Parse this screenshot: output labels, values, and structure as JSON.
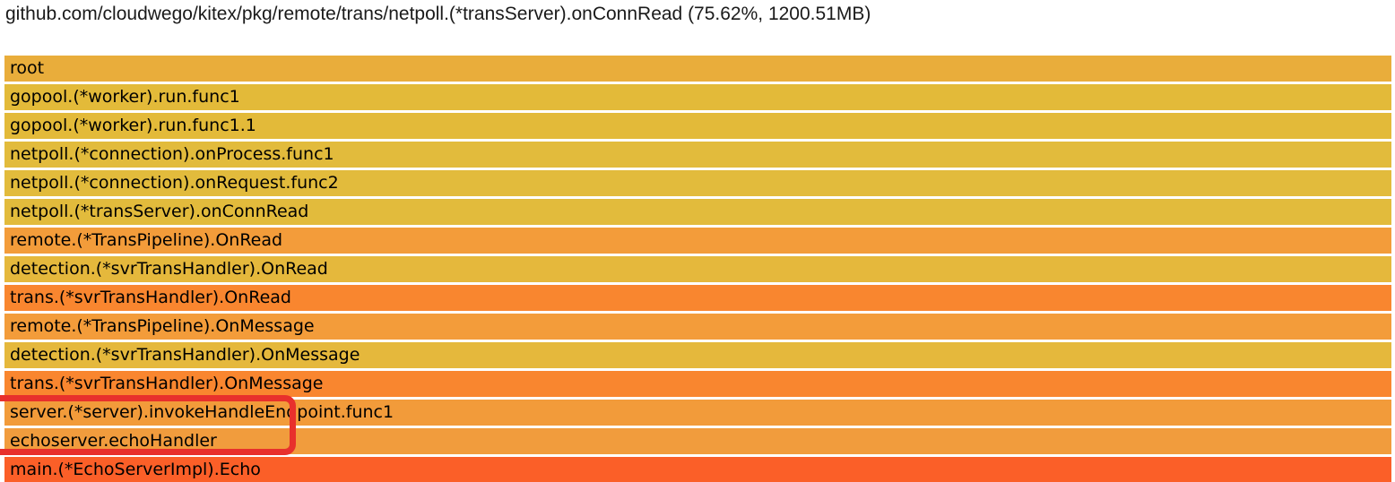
{
  "header": {
    "title": "github.com/cloudwego/kitex/pkg/remote/trans/netpoll.(*transServer).onConnRead (75.62%, 1200.51MB)"
  },
  "chart_data": {
    "type": "flamegraph",
    "orientation": "icicle-top-down",
    "selected_node": {
      "name": "github.com/cloudwego/kitex/pkg/remote/trans/netpoll.(*transServer).onConnRead",
      "percent": "75.62%",
      "flat_size": "1200.51MB"
    },
    "frames": [
      {
        "label": "root",
        "color": "#e9ad3b",
        "width_pct": 100
      },
      {
        "label": "gopool.(*worker).run.func1",
        "color": "#e3ba39",
        "width_pct": 100
      },
      {
        "label": "gopool.(*worker).run.func1.1",
        "color": "#e3ba39",
        "width_pct": 100
      },
      {
        "label": "netpoll.(*connection).onProcess.func1",
        "color": "#e2bb3c",
        "width_pct": 100
      },
      {
        "label": "netpoll.(*connection).onRequest.func2",
        "color": "#e2bb3c",
        "width_pct": 100
      },
      {
        "label": "netpoll.(*transServer).onConnRead",
        "color": "#e2bb3c",
        "width_pct": 100
      },
      {
        "label": "remote.(*TransPipeline).OnRead",
        "color": "#f39c3a",
        "width_pct": 100
      },
      {
        "label": "detection.(*svrTransHandler).OnRead",
        "color": "#e5b83c",
        "width_pct": 100
      },
      {
        "label": "trans.(*svrTransHandler).OnRead",
        "color": "#f9862f",
        "width_pct": 100
      },
      {
        "label": "remote.(*TransPipeline).OnMessage",
        "color": "#f39c3a",
        "width_pct": 100
      },
      {
        "label": "detection.(*svrTransHandler).OnMessage",
        "color": "#e5b83c",
        "width_pct": 100
      },
      {
        "label": "trans.(*svrTransHandler).OnMessage",
        "color": "#f9862f",
        "width_pct": 100
      },
      {
        "label": "server.(*server).invokeHandleEndpoint.func1",
        "color": "#f29b3a",
        "width_pct": 100
      },
      {
        "label": "echoserver.echoHandler",
        "color": "#f19c3d",
        "width_pct": 100
      },
      {
        "label": "main.(*EchoServerImpl).Echo",
        "color": "#fb5f28",
        "width_pct": 100
      }
    ],
    "annotation": {
      "type": "highlight-box",
      "color": "#e8302c",
      "highlighted_frames": [
        "server.(*server).invokeHandleEndpoint.func1",
        "echoserver.echoHandler"
      ]
    }
  }
}
